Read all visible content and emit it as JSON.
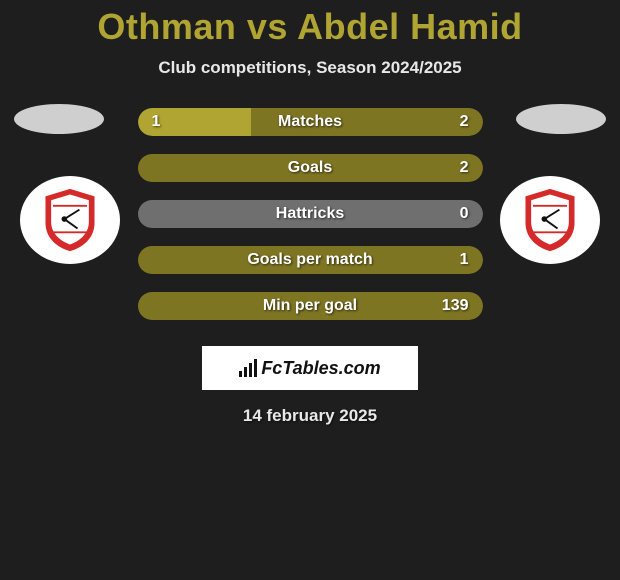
{
  "header": {
    "title": "Othman vs Abdel Hamid",
    "subtitle": "Club competitions, Season 2024/2025"
  },
  "colors": {
    "accent": "#b0a432",
    "accent_dark": "#7e7523",
    "background": "#1e1e1e",
    "neutral_bar": "#6f6f6f",
    "text": "#ffffff",
    "ellipse": "#cfcfcf",
    "shield_red": "#d42a2a",
    "shield_white": "#ffffff"
  },
  "stats": {
    "rows": [
      {
        "label": "Matches",
        "left": "1",
        "right": "2",
        "left_pct": 33,
        "right_pct": 67,
        "left_color": "#b0a432",
        "right_color": "#7e7523"
      },
      {
        "label": "Goals",
        "left": "",
        "right": "2",
        "left_pct": 0,
        "right_pct": 100,
        "left_color": "#b0a432",
        "right_color": "#7e7523"
      },
      {
        "label": "Hattricks",
        "left": "",
        "right": "0",
        "left_pct": 0,
        "right_pct": 100,
        "left_color": "#6f6f6f",
        "right_color": "#6f6f6f"
      },
      {
        "label": "Goals per match",
        "left": "",
        "right": "1",
        "left_pct": 0,
        "right_pct": 100,
        "left_color": "#b0a432",
        "right_color": "#7e7523"
      },
      {
        "label": "Min per goal",
        "left": "",
        "right": "139",
        "left_pct": 0,
        "right_pct": 100,
        "left_color": "#b0a432",
        "right_color": "#7e7523"
      }
    ]
  },
  "brand": {
    "text": "FcTables.com"
  },
  "footer": {
    "date": "14 february 2025"
  }
}
